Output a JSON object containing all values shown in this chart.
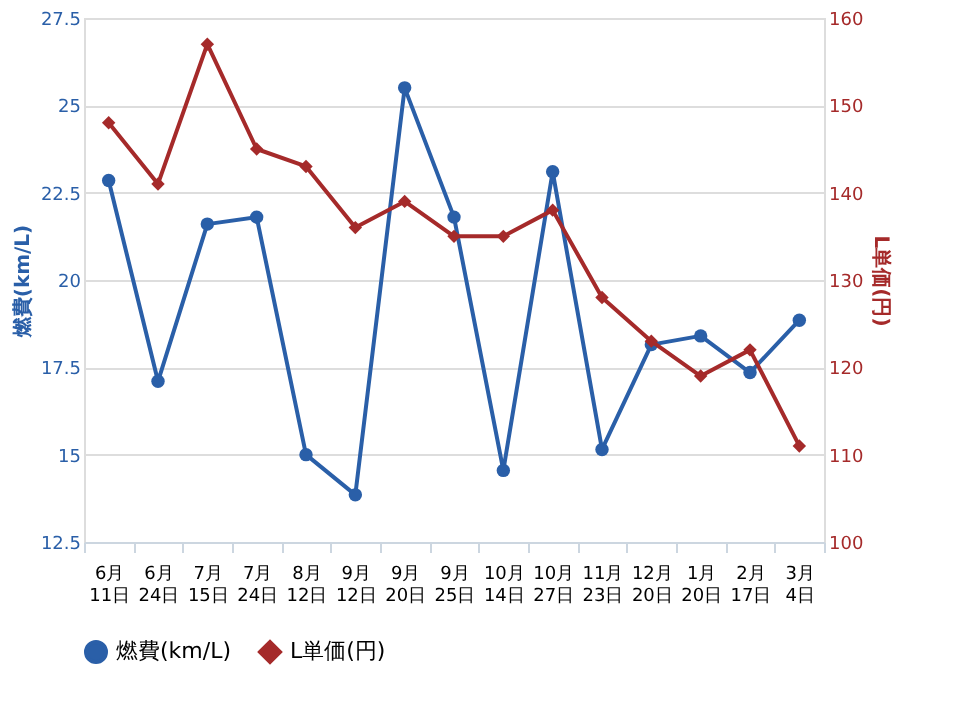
{
  "chart_data": {
    "type": "line",
    "categories": [
      "6月\n11日",
      "6月\n24日",
      "7月\n15日",
      "7月\n24日",
      "8月\n12日",
      "9月\n12日",
      "9月\n20日",
      "9月\n25日",
      "10月\n14日",
      "10月\n27日",
      "11月\n23日",
      "12月\n20日",
      "1月\n20日",
      "2月\n17日",
      "3月\n4日"
    ],
    "series": [
      {
        "name": "燃費(km/L)",
        "color": "#2a5fa8",
        "marker": "circle",
        "values": [
          22.85,
          17.1,
          21.6,
          21.8,
          15.0,
          13.85,
          25.5,
          21.8,
          14.55,
          23.1,
          15.15,
          18.15,
          18.4,
          17.35,
          18.85
        ]
      },
      {
        "name": "L単価(円)",
        "color": "#a52a2a",
        "marker": "diamond",
        "axis": "y2",
        "values": [
          148,
          141,
          157,
          145,
          143,
          136,
          139,
          135,
          135,
          138,
          128,
          123,
          119,
          122,
          111
        ]
      }
    ],
    "ylabel": "燃費(km/L)",
    "y2label": "L単価(円)",
    "ylim": [
      12.5,
      27.5
    ],
    "yticks": [
      12.5,
      15,
      17.5,
      20,
      22.5,
      25,
      27.5
    ],
    "y2lim": [
      100,
      160
    ],
    "y2ticks": [
      100,
      110,
      120,
      130,
      140,
      150,
      160
    ],
    "grid": "y",
    "legend": "bottom"
  }
}
